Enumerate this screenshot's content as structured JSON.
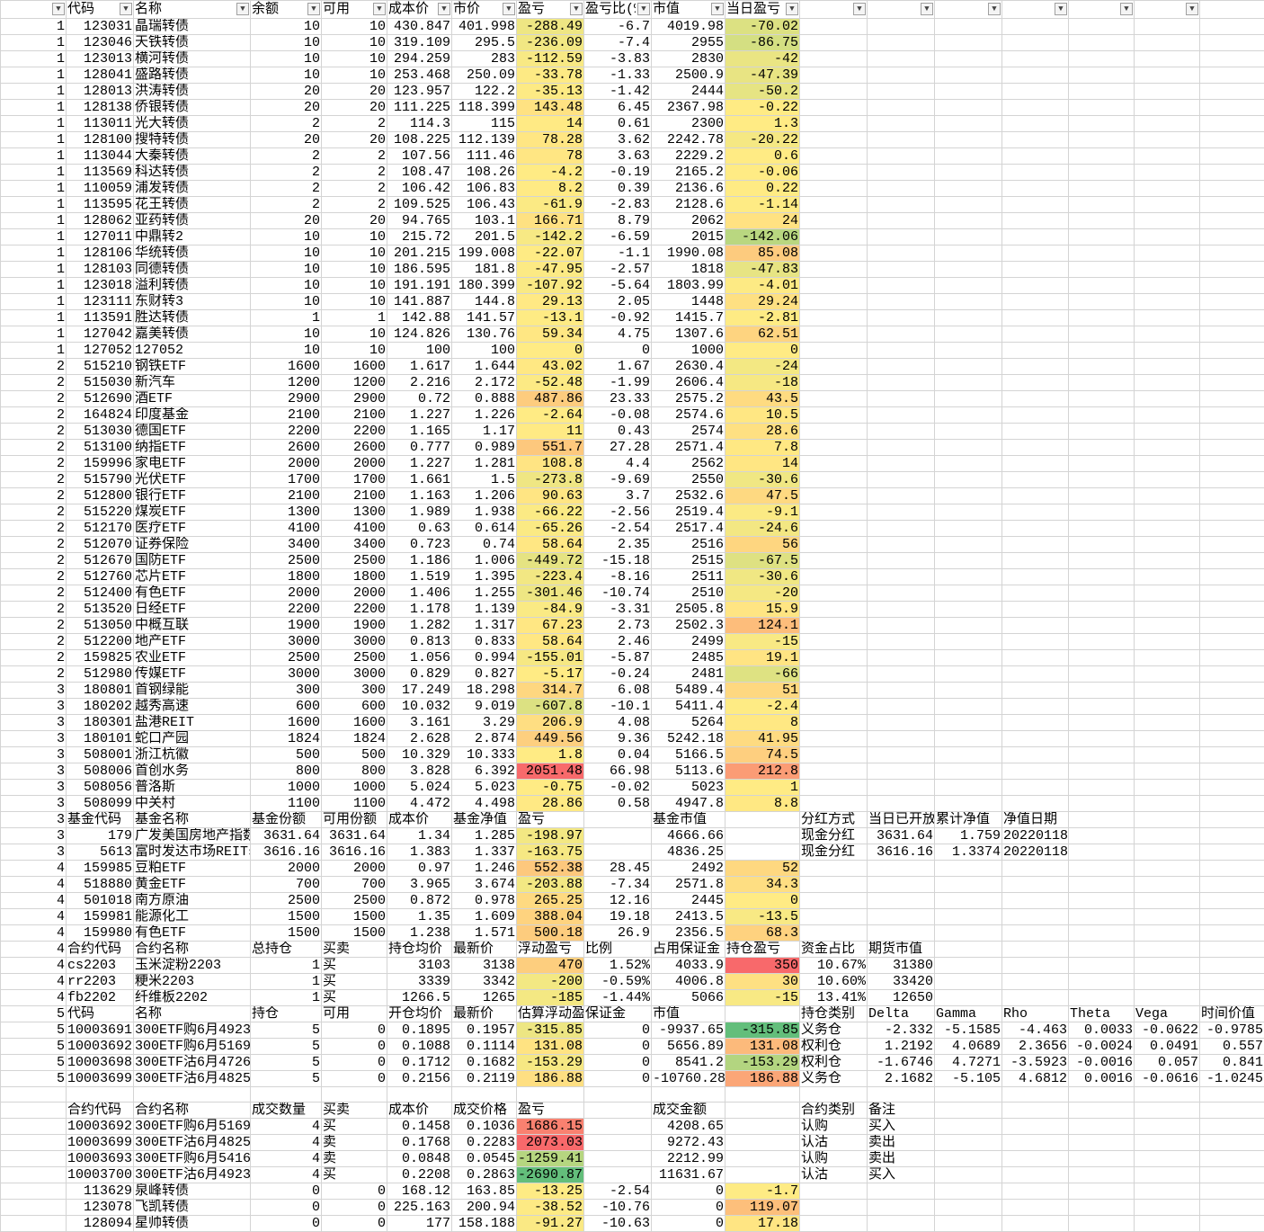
{
  "color_scale": {
    "min": "#63BE7B",
    "mid": "#FFEB84",
    "max": "#F8696B"
  },
  "scaled_columns": [
    7,
    10
  ],
  "filter_icon": "dropdown-arrow-icon",
  "header": [
    "",
    "代码",
    "名称",
    "余额",
    "可用",
    "成本价",
    "市价",
    "盈亏",
    "盈亏比(%)",
    "市值",
    "当日盈亏",
    "",
    "",
    "",
    "",
    "",
    "",
    ""
  ],
  "rows": [
    [
      "1",
      "123031",
      "晶瑞转债",
      "10",
      "10",
      "430.847",
      "401.998",
      "-288.49",
      "-6.7",
      "4019.98",
      "-70.02"
    ],
    [
      "1",
      "123046",
      "天铁转债",
      "10",
      "10",
      "319.109",
      "295.5",
      "-236.09",
      "-7.4",
      "2955",
      "-86.75"
    ],
    [
      "1",
      "123013",
      "横河转债",
      "10",
      "10",
      "294.259",
      "283",
      "-112.59",
      "-3.83",
      "2830",
      "-42"
    ],
    [
      "1",
      "128041",
      "盛路转债",
      "10",
      "10",
      "253.468",
      "250.09",
      "-33.78",
      "-1.33",
      "2500.9",
      "-47.39"
    ],
    [
      "1",
      "128013",
      "洪涛转债",
      "20",
      "20",
      "123.957",
      "122.2",
      "-35.13",
      "-1.42",
      "2444",
      "-50.2"
    ],
    [
      "1",
      "128138",
      "侨银转债",
      "20",
      "20",
      "111.225",
      "118.399",
      "143.48",
      "6.45",
      "2367.98",
      "-0.22"
    ],
    [
      "1",
      "113011",
      "光大转债",
      "2",
      "2",
      "114.3",
      "115",
      "14",
      "0.61",
      "2300",
      "1.3"
    ],
    [
      "1",
      "128100",
      "搜特转债",
      "20",
      "20",
      "108.225",
      "112.139",
      "78.28",
      "3.62",
      "2242.78",
      "-20.22"
    ],
    [
      "1",
      "113044",
      "大秦转债",
      "2",
      "2",
      "107.56",
      "111.46",
      "78",
      "3.63",
      "2229.2",
      "0.6"
    ],
    [
      "1",
      "113569",
      "科达转债",
      "2",
      "2",
      "108.47",
      "108.26",
      "-4.2",
      "-0.19",
      "2165.2",
      "-0.06"
    ],
    [
      "1",
      "110059",
      "浦发转债",
      "2",
      "2",
      "106.42",
      "106.83",
      "8.2",
      "0.39",
      "2136.6",
      "0.22"
    ],
    [
      "1",
      "113595",
      "花王转债",
      "2",
      "2",
      "109.525",
      "106.43",
      "-61.9",
      "-2.83",
      "2128.6",
      "-1.14"
    ],
    [
      "1",
      "128062",
      "亚药转债",
      "20",
      "20",
      "94.765",
      "103.1",
      "166.71",
      "8.79",
      "2062",
      "24"
    ],
    [
      "1",
      "127011",
      "中鼎转2",
      "10",
      "10",
      "215.72",
      "201.5",
      "-142.2",
      "-6.59",
      "2015",
      "-142.06"
    ],
    [
      "1",
      "128106",
      "华统转债",
      "10",
      "10",
      "201.215",
      "199.008",
      "-22.07",
      "-1.1",
      "1990.08",
      "85.08"
    ],
    [
      "1",
      "128103",
      "同德转债",
      "10",
      "10",
      "186.595",
      "181.8",
      "-47.95",
      "-2.57",
      "1818",
      "-47.83"
    ],
    [
      "1",
      "123018",
      "溢利转债",
      "10",
      "10",
      "191.191",
      "180.399",
      "-107.92",
      "-5.64",
      "1803.99",
      "-4.01"
    ],
    [
      "1",
      "123111",
      "东财转3",
      "10",
      "10",
      "141.887",
      "144.8",
      "29.13",
      "2.05",
      "1448",
      "29.24"
    ],
    [
      "1",
      "113591",
      "胜达转债",
      "1",
      "1",
      "142.88",
      "141.57",
      "-13.1",
      "-0.92",
      "1415.7",
      "-2.81"
    ],
    [
      "1",
      "127042",
      "嘉美转债",
      "10",
      "10",
      "124.826",
      "130.76",
      "59.34",
      "4.75",
      "1307.6",
      "62.51"
    ],
    [
      "1",
      "127052",
      "127052",
      "10",
      "10",
      "100",
      "100",
      "0",
      "0",
      "1000",
      "0"
    ],
    [
      "2",
      "515210",
      "钢铁ETF",
      "1600",
      "1600",
      "1.617",
      "1.644",
      "43.02",
      "1.67",
      "2630.4",
      "-24"
    ],
    [
      "2",
      "515030",
      "新汽车",
      "1200",
      "1200",
      "2.216",
      "2.172",
      "-52.48",
      "-1.99",
      "2606.4",
      "-18"
    ],
    [
      "2",
      "512690",
      "酒ETF",
      "2900",
      "2900",
      "0.72",
      "0.888",
      "487.86",
      "23.33",
      "2575.2",
      "43.5"
    ],
    [
      "2",
      "164824",
      "印度基金",
      "2100",
      "2100",
      "1.227",
      "1.226",
      "-2.64",
      "-0.08",
      "2574.6",
      "10.5"
    ],
    [
      "2",
      "513030",
      "德国ETF",
      "2200",
      "2200",
      "1.165",
      "1.17",
      "11",
      "0.43",
      "2574",
      "28.6"
    ],
    [
      "2",
      "513100",
      "纳指ETF",
      "2600",
      "2600",
      "0.777",
      "0.989",
      "551.7",
      "27.28",
      "2571.4",
      "7.8"
    ],
    [
      "2",
      "159996",
      "家电ETF",
      "2000",
      "2000",
      "1.227",
      "1.281",
      "108.8",
      "4.4",
      "2562",
      "14"
    ],
    [
      "2",
      "515790",
      "光伏ETF",
      "1700",
      "1700",
      "1.661",
      "1.5",
      "-273.8",
      "-9.69",
      "2550",
      "-30.6"
    ],
    [
      "2",
      "512800",
      "银行ETF",
      "2100",
      "2100",
      "1.163",
      "1.206",
      "90.63",
      "3.7",
      "2532.6",
      "47.5"
    ],
    [
      "2",
      "515220",
      "煤炭ETF",
      "1300",
      "1300",
      "1.989",
      "1.938",
      "-66.22",
      "-2.56",
      "2519.4",
      "-9.1"
    ],
    [
      "2",
      "512170",
      "医疗ETF",
      "4100",
      "4100",
      "0.63",
      "0.614",
      "-65.26",
      "-2.54",
      "2517.4",
      "-24.6"
    ],
    [
      "2",
      "512070",
      "证券保险",
      "3400",
      "3400",
      "0.723",
      "0.74",
      "58.64",
      "2.35",
      "2516",
      "56"
    ],
    [
      "2",
      "512670",
      "国防ETF",
      "2500",
      "2500",
      "1.186",
      "1.006",
      "-449.72",
      "-15.18",
      "2515",
      "-67.5"
    ],
    [
      "2",
      "512760",
      "芯片ETF",
      "1800",
      "1800",
      "1.519",
      "1.395",
      "-223.4",
      "-8.16",
      "2511",
      "-30.6"
    ],
    [
      "2",
      "512400",
      "有色ETF",
      "2000",
      "2000",
      "1.406",
      "1.255",
      "-301.46",
      "-10.74",
      "2510",
      "-20"
    ],
    [
      "2",
      "513520",
      "日经ETF",
      "2200",
      "2200",
      "1.178",
      "1.139",
      "-84.9",
      "-3.31",
      "2505.8",
      "15.9"
    ],
    [
      "2",
      "513050",
      "中概互联",
      "1900",
      "1900",
      "1.282",
      "1.317",
      "67.23",
      "2.73",
      "2502.3",
      "124.1"
    ],
    [
      "2",
      "512200",
      "地产ETF",
      "3000",
      "3000",
      "0.813",
      "0.833",
      "58.64",
      "2.46",
      "2499",
      "-15"
    ],
    [
      "2",
      "159825",
      "农业ETF",
      "2500",
      "2500",
      "1.056",
      "0.994",
      "-155.01",
      "-5.87",
      "2485",
      "19.1"
    ],
    [
      "2",
      "512980",
      "传媒ETF",
      "3000",
      "3000",
      "0.829",
      "0.827",
      "-5.17",
      "-0.24",
      "2481",
      "-66"
    ],
    [
      "3",
      "180801",
      "首钢绿能",
      "300",
      "300",
      "17.249",
      "18.298",
      "314.7",
      "6.08",
      "5489.4",
      "51"
    ],
    [
      "3",
      "180202",
      "越秀高速",
      "600",
      "600",
      "10.032",
      "9.019",
      "-607.8",
      "-10.1",
      "5411.4",
      "-2.4"
    ],
    [
      "3",
      "180301",
      "盐港REIT",
      "1600",
      "1600",
      "3.161",
      "3.29",
      "206.9",
      "4.08",
      "5264",
      "8"
    ],
    [
      "3",
      "180101",
      "蛇口产园",
      "1824",
      "1824",
      "2.628",
      "2.874",
      "449.56",
      "9.36",
      "5242.18",
      "41.95"
    ],
    [
      "3",
      "508001",
      "浙江杭徽",
      "500",
      "500",
      "10.329",
      "10.333",
      "1.8",
      "0.04",
      "5166.5",
      "74.5"
    ],
    [
      "3",
      "508006",
      "首创水务",
      "800",
      "800",
      "3.828",
      "6.392",
      "2051.48",
      "66.98",
      "5113.6",
      "212.8"
    ],
    [
      "3",
      "508056",
      "普洛斯",
      "1000",
      "1000",
      "5.024",
      "5.023",
      "-0.75",
      "-0.02",
      "5023",
      "1"
    ],
    [
      "3",
      "508099",
      "中关村",
      "1100",
      "1100",
      "4.472",
      "4.498",
      "28.86",
      "0.58",
      "4947.8",
      "8.8"
    ],
    [
      "3",
      "基金代码",
      "基金名称",
      "基金份额",
      "可用份额",
      "成本价",
      "基金净值",
      "盈亏",
      "",
      "基金市值",
      "",
      "分红方式",
      "当日已开放",
      "累计净值",
      "净值日期"
    ],
    [
      "3",
      "179",
      "广发美国房地产指数",
      "3631.64",
      "3631.64",
      "1.34",
      "1.285",
      "-198.97",
      "",
      "4666.66",
      "",
      "现金分红",
      "3631.64",
      "1.759",
      "20220118"
    ],
    [
      "3",
      "5613",
      "富时发达市场REITs",
      "3616.16",
      "3616.16",
      "1.383",
      "1.337",
      "-163.75",
      "",
      "4836.25",
      "",
      "现金分红",
      "3616.16",
      "1.3374",
      "20220118"
    ],
    [
      "4",
      "159985",
      "豆粕ETF",
      "2000",
      "2000",
      "0.97",
      "1.246",
      "552.38",
      "28.45",
      "2492",
      "52"
    ],
    [
      "4",
      "518880",
      "黄金ETF",
      "700",
      "700",
      "3.965",
      "3.674",
      "-203.88",
      "-7.34",
      "2571.8",
      "34.3"
    ],
    [
      "4",
      "501018",
      "南方原油",
      "2500",
      "2500",
      "0.872",
      "0.978",
      "265.25",
      "12.16",
      "2445",
      "0"
    ],
    [
      "4",
      "159981",
      "能源化工",
      "1500",
      "1500",
      "1.35",
      "1.609",
      "388.04",
      "19.18",
      "2413.5",
      "-13.5"
    ],
    [
      "4",
      "159980",
      "有色ETF",
      "1500",
      "1500",
      "1.238",
      "1.571",
      "500.18",
      "26.9",
      "2356.5",
      "68.3"
    ],
    [
      "4",
      "合约代码",
      "合约名称",
      "总持仓",
      "买卖",
      "持仓均价",
      "最新价",
      "浮动盈亏",
      "比例",
      "占用保证金",
      "持仓盈亏",
      "资金占比",
      "期货市值"
    ],
    [
      "4",
      "cs2203",
      "玉米淀粉2203",
      "1",
      "买",
      "3103",
      "3138",
      "470",
      "1.52%",
      "4033.9",
      "350",
      "10.67%",
      "31380"
    ],
    [
      "4",
      "rr2203",
      "粳米2203",
      "1",
      "买",
      "3339",
      "3342",
      "-200",
      "-0.59%",
      "4006.8",
      "30",
      "10.60%",
      "33420"
    ],
    [
      "4",
      "fb2202",
      "纤维板2202",
      "1",
      "买",
      "1266.5",
      "1265",
      "-185",
      "-1.44%",
      "5066",
      "-15",
      "13.41%",
      "12650"
    ],
    [
      "5",
      "代码",
      "名称",
      "持仓",
      "可用",
      "开仓均价",
      "最新价",
      "估算浮动盈亏",
      "保证金",
      "市值",
      "",
      "持仓类别",
      "Delta",
      "Gamma",
      "Rho",
      "Theta",
      "Vega",
      "时间价值"
    ],
    [
      "5",
      "10003691",
      "300ETF购6月4923A",
      "5",
      "0",
      "0.1895",
      "0.1957",
      "-315.85",
      "0",
      "-9937.65",
      "-315.85",
      "义务仓",
      "-2.332",
      "-5.1585",
      "-4.463",
      "0.0033",
      "-0.0622",
      "-0.9785"
    ],
    [
      "5",
      "10003692",
      "300ETF购6月5169A",
      "5",
      "0",
      "0.1088",
      "0.1114",
      "131.08",
      "0",
      "5656.89",
      "131.08",
      "权利仓",
      "1.2192",
      "4.0689",
      "2.3656",
      "-0.0024",
      "0.0491",
      "0.557"
    ],
    [
      "5",
      "10003698",
      "300ETF沽6月4726A",
      "5",
      "0",
      "0.1712",
      "0.1682",
      "-153.29",
      "0",
      "8541.2",
      "-153.29",
      "权利仓",
      "-1.6746",
      "4.7271",
      "-3.5923",
      "-0.0016",
      "0.057",
      "0.841"
    ],
    [
      "5",
      "10003699",
      "300ETF沽6月4825A",
      "5",
      "0",
      "0.2156",
      "0.2119",
      "186.88",
      "0",
      "-10760.28",
      "186.88",
      "义务仓",
      "2.1682",
      "-5.105",
      "4.6812",
      "0.0016",
      "-0.0616",
      "-1.0245"
    ],
    [],
    [
      "",
      "合约代码",
      "合约名称",
      "成交数量",
      "买卖",
      "成本价",
      "成交价格",
      "盈亏",
      "",
      "成交金额",
      "",
      "合约类别",
      "备注"
    ],
    [
      "",
      "10003692",
      "300ETF购6月5169A",
      "4",
      "买",
      "0.1458",
      "0.1036",
      "1686.15",
      "",
      "4208.65",
      "",
      "认购",
      "买入"
    ],
    [
      "",
      "10003699",
      "300ETF沽6月4825A",
      "4",
      "卖",
      "0.1768",
      "0.2283",
      "2073.03",
      "",
      "9272.43",
      "",
      "认沽",
      "卖出"
    ],
    [
      "",
      "10003693",
      "300ETF购6月5416A",
      "4",
      "卖",
      "0.0848",
      "0.0545",
      "-1259.41",
      "",
      "2212.99",
      "",
      "认购",
      "卖出"
    ],
    [
      "",
      "10003700",
      "300ETF沽6月4923A",
      "4",
      "买",
      "0.2208",
      "0.2863",
      "-2690.87",
      "",
      "11631.67",
      "",
      "认沽",
      "买入"
    ],
    [
      "",
      "113629",
      "泉峰转债",
      "0",
      "0",
      "168.12",
      "163.85",
      "-13.25",
      "-2.54",
      "0",
      "-1.7"
    ],
    [
      "",
      "123078",
      "飞凯转债",
      "0",
      "0",
      "225.163",
      "200.94",
      "-38.52",
      "-10.76",
      "0",
      "119.07"
    ],
    [
      "",
      "128094",
      "星帅转债",
      "0",
      "0",
      "177",
      "158.188",
      "-91.27",
      "-10.63",
      "0",
      "17.18"
    ]
  ]
}
